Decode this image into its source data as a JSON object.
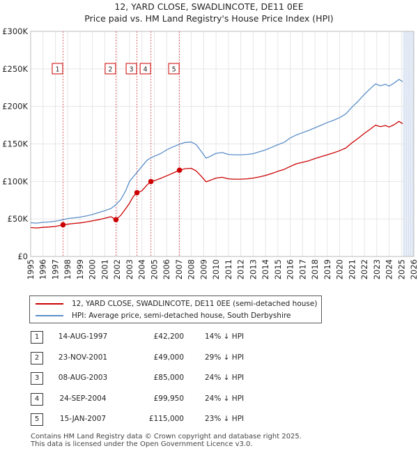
{
  "title": {
    "line1": "12, YARD CLOSE, SWADLINCOTE, DE11 0EE",
    "line2": "Price paid vs. HM Land Registry's House Price Index (HPI)"
  },
  "chart_data": {
    "type": "line",
    "y_ticks": [
      {
        "value": 0,
        "label": "£0"
      },
      {
        "value": 50000,
        "label": "£50K"
      },
      {
        "value": 100000,
        "label": "£100K"
      },
      {
        "value": 150000,
        "label": "£150K"
      },
      {
        "value": 200000,
        "label": "£200K"
      },
      {
        "value": 250000,
        "label": "£250K"
      },
      {
        "value": 300000,
        "label": "£300K"
      }
    ],
    "x_ticks": [
      "1995",
      "1996",
      "1997",
      "1998",
      "1999",
      "2000",
      "2001",
      "2002",
      "2003",
      "2004",
      "2005",
      "2006",
      "2007",
      "2008",
      "2009",
      "2010",
      "2011",
      "2012",
      "2013",
      "2014",
      "2015",
      "2016",
      "2017",
      "2018",
      "2019",
      "2020",
      "2021",
      "2022",
      "2023",
      "2024",
      "2025",
      "2026"
    ],
    "xlim": [
      1995,
      2026
    ],
    "ylim": [
      0,
      300000
    ],
    "hpi_series": {
      "name": "HPI: Average price, semi-detached house, South Derbyshire",
      "color": "#5b8ec9",
      "points": [
        [
          1995.0,
          45000
        ],
        [
          1995.5,
          44500
        ],
        [
          1996.0,
          45500
        ],
        [
          1996.5,
          46000
        ],
        [
          1997.0,
          47000
        ],
        [
          1997.62,
          49000
        ],
        [
          1998.0,
          50500
        ],
        [
          1998.5,
          51500
        ],
        [
          1999.0,
          52500
        ],
        [
          1999.5,
          54000
        ],
        [
          2000.0,
          56000
        ],
        [
          2000.5,
          58500
        ],
        [
          2001.0,
          61000
        ],
        [
          2001.5,
          64000
        ],
        [
          2001.9,
          69000
        ],
        [
          2002.3,
          76000
        ],
        [
          2002.7,
          88000
        ],
        [
          2003.0,
          100000
        ],
        [
          2003.4,
          108000
        ],
        [
          2003.6,
          112000
        ],
        [
          2004.0,
          120000
        ],
        [
          2004.4,
          128000
        ],
        [
          2004.73,
          131500
        ],
        [
          2005.0,
          133500
        ],
        [
          2005.5,
          137000
        ],
        [
          2006.0,
          142000
        ],
        [
          2006.5,
          146000
        ],
        [
          2007.04,
          149500
        ],
        [
          2007.5,
          152000
        ],
        [
          2008.0,
          152500
        ],
        [
          2008.4,
          149000
        ],
        [
          2008.8,
          140000
        ],
        [
          2009.2,
          131000
        ],
        [
          2009.6,
          134000
        ],
        [
          2010.0,
          137500
        ],
        [
          2010.5,
          138500
        ],
        [
          2011.0,
          136000
        ],
        [
          2011.5,
          135500
        ],
        [
          2012.0,
          135500
        ],
        [
          2012.5,
          136000
        ],
        [
          2013.0,
          137000
        ],
        [
          2013.5,
          139500
        ],
        [
          2014.0,
          142000
        ],
        [
          2014.5,
          145500
        ],
        [
          2015.0,
          149000
        ],
        [
          2015.5,
          152000
        ],
        [
          2016.0,
          158000
        ],
        [
          2016.5,
          162000
        ],
        [
          2017.0,
          165000
        ],
        [
          2017.5,
          168000
        ],
        [
          2018.0,
          171500
        ],
        [
          2018.5,
          175000
        ],
        [
          2019.0,
          178500
        ],
        [
          2019.5,
          181500
        ],
        [
          2020.0,
          185000
        ],
        [
          2020.5,
          190000
        ],
        [
          2021.0,
          199000
        ],
        [
          2021.5,
          207000
        ],
        [
          2022.0,
          216000
        ],
        [
          2022.5,
          224000
        ],
        [
          2022.9,
          230000
        ],
        [
          2023.3,
          227500
        ],
        [
          2023.7,
          229500
        ],
        [
          2024.0,
          227000
        ],
        [
          2024.4,
          231000
        ],
        [
          2024.8,
          236000
        ],
        [
          2025.1,
          233000
        ]
      ]
    },
    "property_series": {
      "name": "12, YARD CLOSE, SWADLINCOTE, DE11 0EE (semi-detached house)",
      "color": "#cc0000",
      "points": [
        [
          1995.0,
          38500
        ],
        [
          1995.5,
          38000
        ],
        [
          1996.0,
          38800
        ],
        [
          1996.5,
          39300
        ],
        [
          1997.0,
          40000
        ],
        [
          1997.62,
          42200
        ],
        [
          1998.0,
          43000
        ],
        [
          1998.5,
          44000
        ],
        [
          1999.0,
          44800
        ],
        [
          1999.5,
          46000
        ],
        [
          2000.0,
          47500
        ],
        [
          2000.5,
          49000
        ],
        [
          2001.0,
          51000
        ],
        [
          2001.5,
          53000
        ],
        [
          2001.9,
          49000
        ],
        [
          2002.3,
          55000
        ],
        [
          2002.7,
          64000
        ],
        [
          2003.0,
          71000
        ],
        [
          2003.3,
          80000
        ],
        [
          2003.6,
          85000
        ],
        [
          2004.0,
          87500
        ],
        [
          2004.4,
          95000
        ],
        [
          2004.73,
          99950
        ],
        [
          2005.0,
          101000
        ],
        [
          2005.5,
          104000
        ],
        [
          2006.0,
          107500
        ],
        [
          2006.5,
          111000
        ],
        [
          2007.04,
          115000
        ],
        [
          2007.5,
          117000
        ],
        [
          2008.0,
          117500
        ],
        [
          2008.4,
          114000
        ],
        [
          2008.8,
          107000
        ],
        [
          2009.2,
          99500
        ],
        [
          2009.6,
          102000
        ],
        [
          2010.0,
          104500
        ],
        [
          2010.5,
          105500
        ],
        [
          2011.0,
          103500
        ],
        [
          2011.5,
          103000
        ],
        [
          2012.0,
          103000
        ],
        [
          2012.5,
          103500
        ],
        [
          2013.0,
          104500
        ],
        [
          2013.5,
          106000
        ],
        [
          2014.0,
          108000
        ],
        [
          2014.5,
          110500
        ],
        [
          2015.0,
          113500
        ],
        [
          2015.5,
          116000
        ],
        [
          2016.0,
          120000
        ],
        [
          2016.5,
          123500
        ],
        [
          2017.0,
          125500
        ],
        [
          2017.5,
          127500
        ],
        [
          2018.0,
          130500
        ],
        [
          2018.5,
          133000
        ],
        [
          2019.0,
          135500
        ],
        [
          2019.5,
          138000
        ],
        [
          2020.0,
          141000
        ],
        [
          2020.5,
          144500
        ],
        [
          2021.0,
          151500
        ],
        [
          2021.5,
          157500
        ],
        [
          2022.0,
          164000
        ],
        [
          2022.5,
          170000
        ],
        [
          2022.9,
          175000
        ],
        [
          2023.3,
          173000
        ],
        [
          2023.7,
          174500
        ],
        [
          2024.0,
          172500
        ],
        [
          2024.4,
          175500
        ],
        [
          2024.8,
          180000
        ],
        [
          2025.1,
          177000
        ]
      ]
    },
    "sales": [
      {
        "num": "1",
        "x": 1997.62,
        "y": 42200
      },
      {
        "num": "2",
        "x": 2001.9,
        "y": 49000
      },
      {
        "num": "3",
        "x": 2003.6,
        "y": 85000
      },
      {
        "num": "4",
        "x": 2004.73,
        "y": 99950
      },
      {
        "num": "5",
        "x": 2007.04,
        "y": 115000
      }
    ],
    "future_shade_start": 2025.1,
    "colors": {
      "property": "#cc0000",
      "hpi": "#5b8ec9",
      "shade": "#e8eef8",
      "grid": "#e6e6e6"
    }
  },
  "legend": {
    "property_label": "12, YARD CLOSE, SWADLINCOTE, DE11 0EE (semi-detached house)",
    "hpi_label": "HPI: Average price, semi-detached house, South Derbyshire"
  },
  "sales_table": [
    {
      "num": "1",
      "date": "14-AUG-1997",
      "price": "£42,200",
      "hpi": "14% ↓ HPI"
    },
    {
      "num": "2",
      "date": "23-NOV-2001",
      "price": "£49,000",
      "hpi": "29% ↓ HPI"
    },
    {
      "num": "3",
      "date": "08-AUG-2003",
      "price": "£85,000",
      "hpi": "24% ↓ HPI"
    },
    {
      "num": "4",
      "date": "24-SEP-2004",
      "price": "£99,950",
      "hpi": "24% ↓ HPI"
    },
    {
      "num": "5",
      "date": "15-JAN-2007",
      "price": "£115,000",
      "hpi": "23% ↓ HPI"
    }
  ],
  "footer": {
    "line1": "Contains HM Land Registry data © Crown copyright and database right 2025.",
    "line2": "This data is licensed under the Open Government Licence v3.0."
  }
}
